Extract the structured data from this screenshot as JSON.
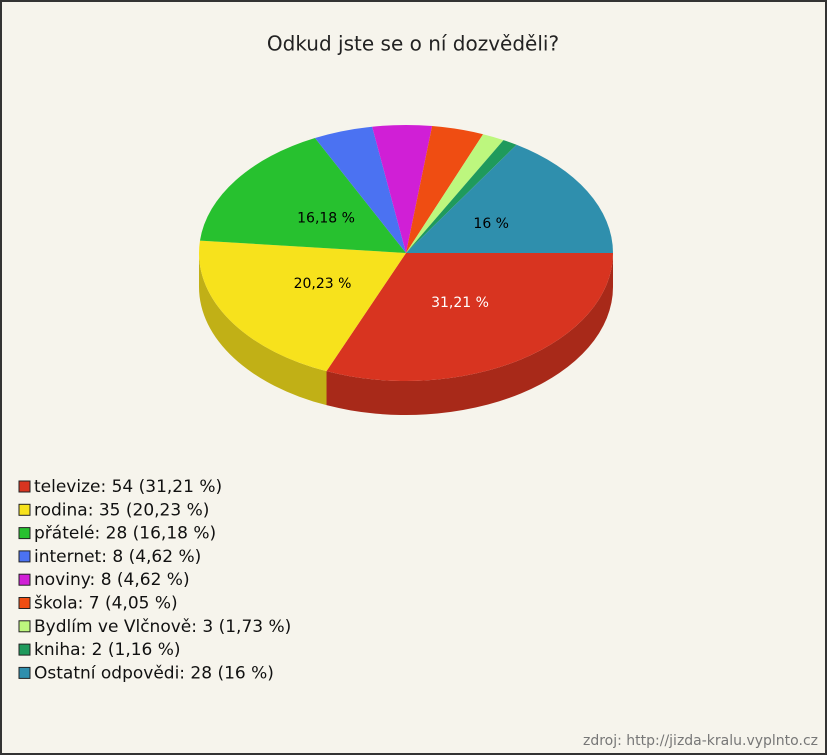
{
  "chart_data": {
    "type": "pie",
    "title": "Odkud jste se o ní dozvěděli?",
    "categories": [
      "televize",
      "rodina",
      "přátelé",
      "internet",
      "noviny",
      "škola",
      "Bydlím ve Vlčnově",
      "kniha",
      "Ostatní odpovědi"
    ],
    "values": [
      31.21,
      20.23,
      16.18,
      4.62,
      4.62,
      4.05,
      1.73,
      1.16,
      16
    ],
    "value_labels": [
      "31,21 %",
      "20,23 %",
      "16,18 %",
      null,
      null,
      null,
      null,
      null,
      "16 %"
    ],
    "legend": [
      "televize: 54 (31,21 %)",
      "rodina: 35 (20,23 %)",
      "přátelé: 28 (16,18 %)",
      "internet: 8 (4,62 %)",
      "noviny: 8 (4,62 %)",
      "škola: 7 (4,05 %)",
      "Bydlím ve Vlčnově: 3 (1,73 %)",
      "kniha: 2 (1,16 %)",
      "Ostatní odpovědi: 28 (16 %)"
    ],
    "colors": [
      "#d83420",
      "#f7e21c",
      "#27c12f",
      "#4b72f2",
      "#d01fd6",
      "#ef4d12",
      "#bdf77e",
      "#1f9a5c",
      "#2f8fad"
    ],
    "source": "zdroj: http://jizda-kralu.vyplnto.cz"
  }
}
